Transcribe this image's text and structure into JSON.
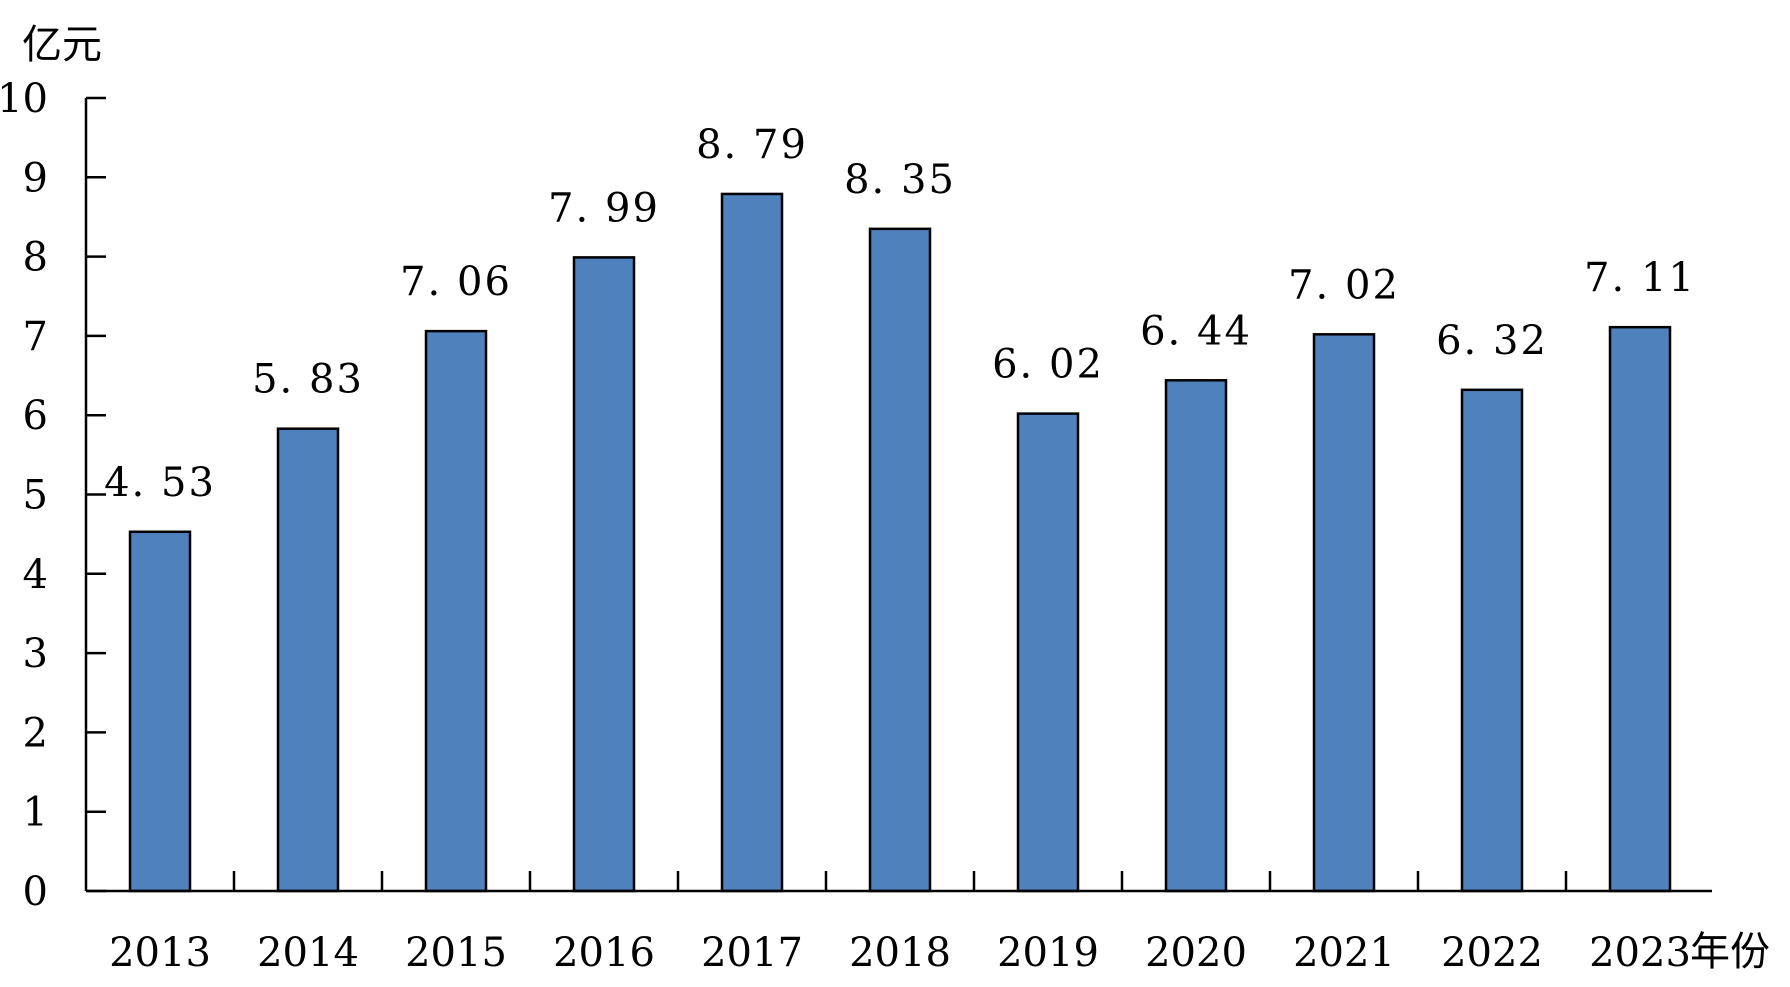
{
  "colors": {
    "bar_fill": "#4f81bd",
    "bar_stroke": "#000000",
    "axis": "#000000"
  },
  "chart_data": {
    "type": "bar",
    "title": "",
    "xlabel": "年份",
    "ylabel": "亿元",
    "ylim": [
      0,
      10
    ],
    "yticks": [
      0,
      1,
      2,
      3,
      4,
      5,
      6,
      7,
      8,
      9,
      10
    ],
    "grid": false,
    "legend": "none",
    "categories": [
      "2013",
      "2014",
      "2015",
      "2016",
      "2017",
      "2018",
      "2019",
      "2020",
      "2021",
      "2022",
      "2023"
    ],
    "values": [
      4.53,
      5.83,
      7.06,
      7.99,
      8.79,
      8.35,
      6.02,
      6.44,
      7.02,
      6.32,
      7.11
    ],
    "data_labels": [
      "4. 53",
      "5. 83",
      "7. 06",
      "7. 99",
      "8. 79",
      "8. 35",
      "6. 02",
      "6. 44",
      "7. 02",
      "6. 32",
      "7. 11"
    ]
  }
}
